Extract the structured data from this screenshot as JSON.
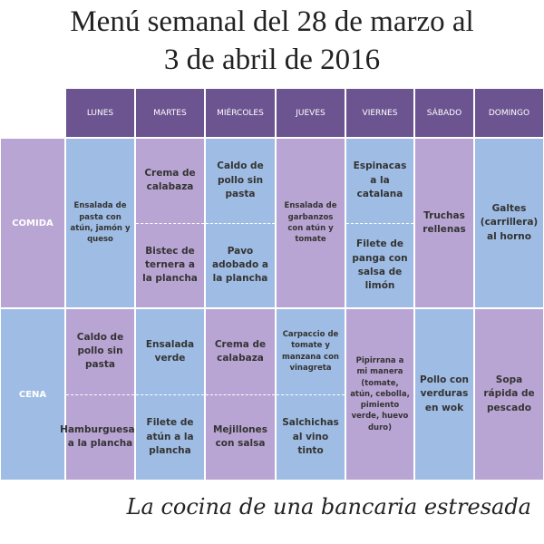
{
  "header": {
    "title_lines": [
      "Menú semanal del 28 de marzo al",
      "3 de abril de 2016"
    ]
  },
  "table": {
    "columns": [
      "LUNES",
      "MARTES",
      "MIÉRCOLES",
      "JUEVES",
      "VIERNES",
      "SÁBADO",
      "DOMINGO"
    ],
    "rows": [
      {
        "label": "COMIDA",
        "cells": [
          [
            "Ensalada de pasta con atún, jamón y queso"
          ],
          [
            "Crema de calabaza",
            "Bistec de ternera a la plancha"
          ],
          [
            "Caldo de pollo sin pasta",
            "Pavo adobado a la plancha"
          ],
          [
            "Ensalada de garbanzos con atún y tomate"
          ],
          [
            "Espinacas a la catalana",
            "Filete de panga con salsa de limón"
          ],
          [
            "Truchas rellenas"
          ],
          [
            "Galtes (carrillera) al horno"
          ]
        ]
      },
      {
        "label": "CENA",
        "cells": [
          [
            "Caldo de pollo sin pasta",
            "Hamburguesas a la plancha"
          ],
          [
            "Ensalada verde",
            "Filete de atún a la plancha"
          ],
          [
            "Crema de calabaza",
            "Mejillones con salsa"
          ],
          [
            "Carpaccio de tomate y manzana con vinagreta",
            "Salchichas al vino tinto"
          ],
          [
            "Pipirrana a mi manera (tomate, atún, cebolla, pimiento verde, huevo duro)"
          ],
          [
            "Pollo con verduras en wok"
          ],
          [
            "Sopa rápida de pescado"
          ]
        ]
      }
    ]
  },
  "footer": {
    "signature": "La cocina de una bancaria estresada"
  }
}
